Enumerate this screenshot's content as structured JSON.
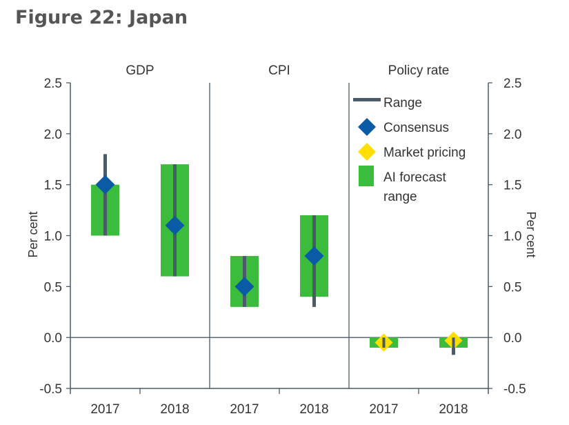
{
  "figure_title": "Figure 22: Japan",
  "colors": {
    "range": "#4a5a66",
    "consensus": "#0b5aa6",
    "market_pricing": "#ffde00",
    "ai_forecast": "#3cbc3c",
    "axis": "#4a5a66"
  },
  "chart_data": {
    "type": "range-bar",
    "title": "",
    "ylabel_left": "Per cent",
    "ylabel_right": "Per cent",
    "ylim": [
      -0.5,
      2.5
    ],
    "yticks": [
      "2.5",
      "2.0",
      "1.5",
      "1.0",
      "0.5",
      "0.0",
      "-0.5"
    ],
    "ytick_values": [
      2.5,
      2.0,
      1.5,
      1.0,
      0.5,
      0.0,
      -0.5
    ],
    "panels": [
      {
        "name": "GDP",
        "groups": [
          {
            "year": "2017",
            "ai_forecast_range": [
              1.0,
              1.5
            ],
            "range": [
              1.0,
              1.8
            ],
            "consensus": 1.5,
            "market_pricing": null
          },
          {
            "year": "2018",
            "ai_forecast_range": [
              0.6,
              1.7
            ],
            "range": [
              0.6,
              1.7
            ],
            "consensus": 1.1,
            "market_pricing": null
          }
        ]
      },
      {
        "name": "CPI",
        "groups": [
          {
            "year": "2017",
            "ai_forecast_range": [
              0.3,
              0.8
            ],
            "range": [
              0.3,
              0.8
            ],
            "consensus": 0.5,
            "market_pricing": null
          },
          {
            "year": "2018",
            "ai_forecast_range": [
              0.4,
              1.2
            ],
            "range": [
              0.3,
              1.2
            ],
            "consensus": 0.8,
            "market_pricing": null
          }
        ]
      },
      {
        "name": "Policy rate",
        "groups": [
          {
            "year": "2017",
            "ai_forecast_range": [
              -0.1,
              0.0
            ],
            "range": [
              -0.1,
              0.0
            ],
            "consensus": null,
            "market_pricing": -0.05
          },
          {
            "year": "2018",
            "ai_forecast_range": [
              -0.1,
              0.0
            ],
            "range": [
              -0.17,
              0.0
            ],
            "consensus": null,
            "market_pricing": -0.03
          }
        ]
      }
    ],
    "legend": {
      "placement": "top-right",
      "entries": [
        {
          "key": "range",
          "label": "Range"
        },
        {
          "key": "consensus",
          "label": "Consensus"
        },
        {
          "key": "market_pricing",
          "label": "Market pricing"
        },
        {
          "key": "ai_forecast",
          "label": "AI forecast",
          "label2": "range"
        }
      ]
    },
    "grid": false
  }
}
